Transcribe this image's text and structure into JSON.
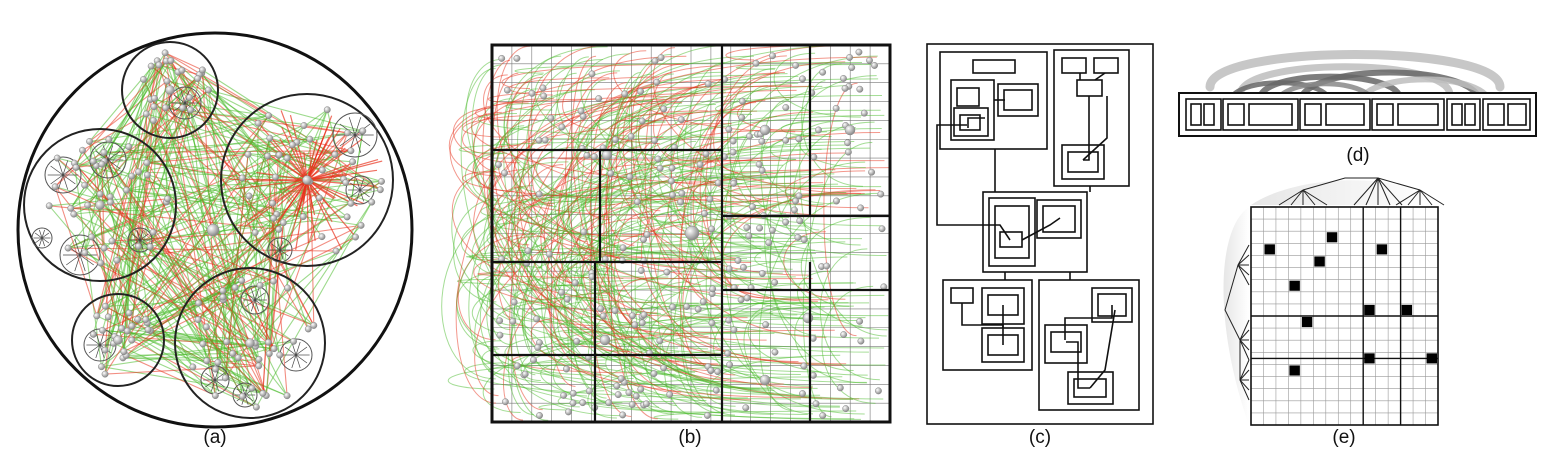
{
  "captions": {
    "a": "(a)",
    "b": "(b)",
    "c": "(c)",
    "d": "(d)",
    "e": "(e)"
  },
  "colors": {
    "edge_green": "#4cbb2e",
    "edge_red": "#e8321c",
    "node_gray": "#a8a8a8",
    "outline": "#111111",
    "arc_light": "#bdbdbd",
    "arc_dark": "#666666",
    "matrix_cell": "#000000"
  },
  "panel_e": {
    "grid_rows": 18,
    "grid_cols": 15,
    "filled_cells": [
      [
        4,
        2
      ],
      [
        3,
        7
      ],
      [
        4,
        11
      ],
      [
        5,
        6
      ],
      [
        7,
        4
      ],
      [
        9,
        10
      ],
      [
        9,
        13
      ],
      [
        10,
        5
      ],
      [
        13,
        10
      ],
      [
        13,
        15
      ],
      [
        14,
        4
      ]
    ]
  }
}
